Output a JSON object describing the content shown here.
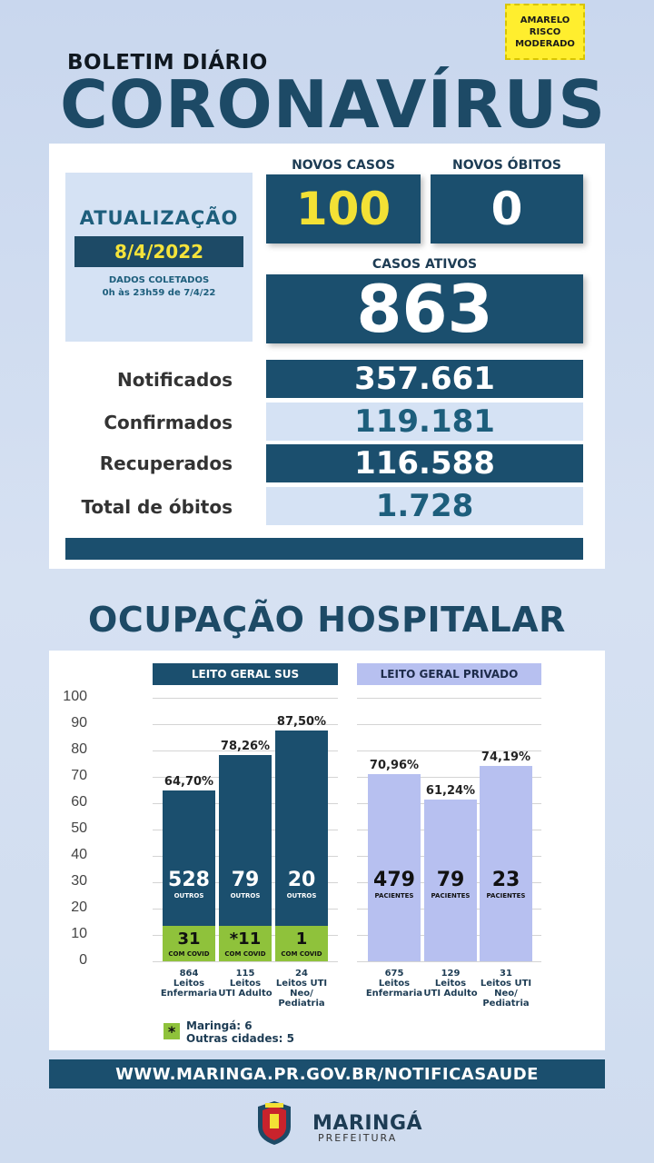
{
  "risk_badge": {
    "line1": "AMARELO",
    "line2": "RISCO",
    "line3": "MODERADO",
    "color": "#ffee2e"
  },
  "header": {
    "subtitle": "BOLETIM DIÁRIO",
    "title": "CORONAVÍRUS"
  },
  "update": {
    "title": "ATUALIZAÇÃO",
    "date": "8/4/2022",
    "collected_label": "DADOS COLETADOS",
    "collected_range": "0h às 23h59 de 7/4/22"
  },
  "cards": {
    "new_cases_label": "NOVOS CASOS",
    "new_cases": "100",
    "new_deaths_label": "NOVOS ÓBITOS",
    "new_deaths": "0",
    "active_label": "CASOS ATIVOS",
    "active": "863"
  },
  "stats": [
    {
      "label": "Notificados",
      "value": "357.661"
    },
    {
      "label": "Confirmados",
      "value": "119.181"
    },
    {
      "label": "Recuperados",
      "value": "116.588"
    },
    {
      "label": "Total de óbitos",
      "value": "1.728"
    }
  ],
  "section_title": "OCUPAÇÃO HOSPITALAR",
  "chart_data": {
    "type": "bar",
    "ylim": [
      0,
      100
    ],
    "yticks": [
      "100",
      "90",
      "80",
      "70",
      "60",
      "50",
      "40",
      "30",
      "20",
      "10",
      "0"
    ],
    "groups": [
      {
        "name": "LEITO GERAL SUS",
        "color": "#1b4f6e",
        "bars": [
          {
            "value": 64.7,
            "label": "64,70%",
            "others": "528",
            "others_label": "OUTROS",
            "covid": "31",
            "covid_label": "COM COVID",
            "beds": "864",
            "cat1": "Leitos",
            "cat2": "Enfermaria",
            "cat3": ""
          },
          {
            "value": 78.26,
            "label": "78,26%",
            "others": "79",
            "others_label": "OUTROS",
            "covid": "*11",
            "covid_label": "COM COVID",
            "beds": "115",
            "cat1": "Leitos",
            "cat2": "UTI Adulto",
            "cat3": ""
          },
          {
            "value": 87.5,
            "label": "87,50%",
            "others": "20",
            "others_label": "OUTROS",
            "covid": "1",
            "covid_label": "COM COVID",
            "beds": "24",
            "cat1": "Leitos UTI",
            "cat2": "Neo/",
            "cat3": "Pediatria"
          }
        ]
      },
      {
        "name": "LEITO GERAL PRIVADO",
        "color": "#b7c0f0",
        "bars": [
          {
            "value": 70.96,
            "label": "70,96%",
            "patients": "479",
            "patients_label": "PACIENTES",
            "beds": "675",
            "cat1": "Leitos",
            "cat2": "Enfermaria",
            "cat3": ""
          },
          {
            "value": 61.24,
            "label": "61,24%",
            "patients": "79",
            "patients_label": "PACIENTES",
            "beds": "129",
            "cat1": "Leitos",
            "cat2": "UTI Adulto",
            "cat3": ""
          },
          {
            "value": 74.19,
            "label": "74,19%",
            "patients": "23",
            "patients_label": "PACIENTES",
            "beds": "31",
            "cat1": "Leitos UTI",
            "cat2": "Neo/",
            "cat3": "Pediatria"
          }
        ]
      }
    ]
  },
  "legend": {
    "star": "*",
    "line1": "Maringá: 6",
    "line2": "Outras cidades: 5"
  },
  "url": "WWW.MARINGA.PR.GOV.BR/NOTIFICASAUDE",
  "logo": {
    "name": "MARINGÁ",
    "sub": "PREFEITURA"
  }
}
